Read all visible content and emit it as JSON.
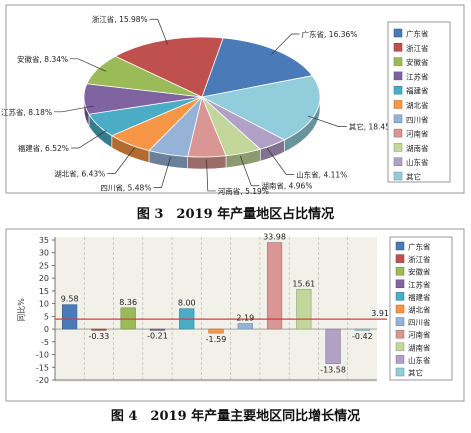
{
  "colors": {
    "广东省": "#4a7ab8",
    "浙江省": "#c0504d",
    "安徽省": "#9bbb59",
    "江苏省": "#8064a2",
    "福建省": "#4bacc6",
    "湖北省": "#f79646",
    "四川省": "#95b3d7",
    "河南省": "#d99694",
    "湖南省": "#c3d69b",
    "山东省": "#b2a1c7",
    "其它": "#92cddc"
  },
  "chart_data": [
    {
      "type": "pie",
      "caption": "图 3　2019 年产量地区占比情况",
      "slices": [
        {
          "name": "广东省",
          "value": 16.36,
          "label": "广东省, 16.36%"
        },
        {
          "name": "其它",
          "value": 18.45,
          "label": "其它, 18.45%"
        },
        {
          "name": "山东省",
          "value": 4.11,
          "label": "山东省, 4.11%"
        },
        {
          "name": "湖南省",
          "value": 4.96,
          "label": "湖南省, 4.96%"
        },
        {
          "name": "河南省",
          "value": 5.19,
          "label": "河南省, 5.19%"
        },
        {
          "name": "四川省",
          "value": 5.48,
          "label": "四川省, 5.48%"
        },
        {
          "name": "湖北省",
          "value": 6.43,
          "label": "湖北省, 6.43%"
        },
        {
          "name": "福建省",
          "value": 6.52,
          "label": "福建省, 6.52%"
        },
        {
          "name": "江苏省",
          "value": 8.18,
          "label": "江苏省, 8.18%"
        },
        {
          "name": "安徽省",
          "value": 8.34,
          "label": "安徽省, 8.34%"
        },
        {
          "name": "浙江省",
          "value": 15.98,
          "label": "浙江省, 15.98%"
        }
      ],
      "legend": [
        "广东省",
        "浙江省",
        "安徽省",
        "江苏省",
        "福建省",
        "湖北省",
        "四川省",
        "河南省",
        "湖南省",
        "山东省",
        "其它"
      ],
      "legend_position": "right"
    },
    {
      "type": "bar",
      "caption": "图 4　2019 年产量主要地区同比增长情况",
      "ylabel": "同比%",
      "categories": [
        "广东省",
        "浙江省",
        "安徽省",
        "江苏省",
        "福建省",
        "湖北省",
        "四川省",
        "河南省",
        "湖南省",
        "山东省",
        "其它"
      ],
      "values": [
        9.58,
        -0.33,
        8.36,
        -0.21,
        8.0,
        -1.59,
        2.19,
        33.98,
        15.61,
        -13.58,
        -0.42
      ],
      "value_labels": [
        "9.58",
        "-0.33",
        "8.36",
        "-0.21",
        "8.00",
        "-1.59",
        "2.19",
        "33.98",
        "15.61",
        "-13.58",
        "-0.42"
      ],
      "reference_line": {
        "value": 3.91,
        "label": "3.91",
        "color": "#e03c3c"
      },
      "ylim": [
        -20,
        35
      ],
      "yticks": [
        "35",
        "30",
        "25",
        "20",
        "15",
        "10",
        "5",
        "0",
        "-5",
        "-10",
        "-15",
        "-20"
      ],
      "legend": [
        "广东省",
        "浙江省",
        "安徽省",
        "江苏省",
        "福建省",
        "湖北省",
        "四川省",
        "河南省",
        "湖南省",
        "山东省",
        "其它"
      ],
      "legend_position": "right",
      "grid": "vertical dashed"
    }
  ]
}
